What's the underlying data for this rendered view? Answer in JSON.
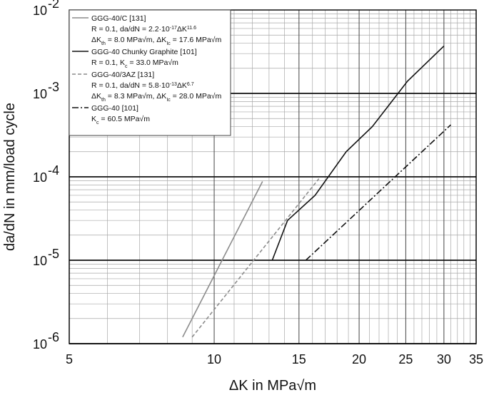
{
  "chart_data": {
    "type": "line",
    "title": "",
    "xlabel": "ΔK in MPa√m",
    "ylabel": "da/dN in mm/load cycle",
    "x_scale": "log",
    "y_scale": "log",
    "xlim": [
      5,
      35
    ],
    "ylim": [
      1e-06,
      0.01
    ],
    "grid": true,
    "x_ticks": [
      5,
      10,
      15,
      20,
      25,
      30,
      35
    ],
    "x_tick_labels": [
      "5",
      "10",
      "15",
      "20",
      "25",
      "30",
      "35"
    ],
    "y_ticks": [
      1e-06,
      1e-05,
      0.0001,
      0.001,
      0.01
    ],
    "y_tick_labels": [
      {
        "base": "10",
        "exp": "-6"
      },
      {
        "base": "10",
        "exp": "-5"
      },
      {
        "base": "10",
        "exp": "-4"
      },
      {
        "base": "10",
        "exp": "-3"
      },
      {
        "base": "10",
        "exp": "-2"
      }
    ],
    "legend_position": "top-left",
    "series": [
      {
        "name": "GGG-40/C [131]",
        "color": "#8c8c8c",
        "style": "solid",
        "x": [
          8.6,
          12.6
        ],
        "y": [
          1.2e-06,
          8.8e-05
        ],
        "legend_lines": [
          [
            {
              "t": "GGG-40/C [131]"
            }
          ],
          [
            {
              "t": "R = 0.1, da/dN = 2.2·10"
            },
            {
              "t": "-17",
              "sup": true
            },
            {
              "t": "ΔK"
            },
            {
              "t": "11.6",
              "sup": true
            }
          ],
          [
            {
              "t": "ΔK"
            },
            {
              "t": "th",
              "sub": true
            },
            {
              "t": " = 8.0 MPa√m, ΔK"
            },
            {
              "t": "Ic",
              "sub": true
            },
            {
              "t": " = 17.6 MPa√m"
            }
          ]
        ]
      },
      {
        "name": "GGG-40 Chunky Graphite [101]",
        "color": "#111111",
        "style": "solid",
        "x": [
          13.2,
          14.2,
          16.2,
          18.8,
          21.3,
          25.2,
          30.0
        ],
        "y": [
          1e-05,
          3e-05,
          6e-05,
          0.0002,
          0.0004,
          0.0014,
          0.0037
        ],
        "legend_lines": [
          [
            {
              "t": "GGG-40 Chunky Graphite [101]"
            }
          ],
          [
            {
              "t": "R = 0.1, K"
            },
            {
              "t": "c",
              "sub": true
            },
            {
              "t": " = 33.0 MPa√m"
            }
          ]
        ]
      },
      {
        "name": "GGG-40/3AZ [131]",
        "color": "#8c8c8c",
        "style": "dashed",
        "x": [
          9.0,
          16.5
        ],
        "y": [
          1.2e-06,
          9.5e-05
        ],
        "legend_lines": [
          [
            {
              "t": "GGG-40/3AZ [131]"
            }
          ],
          [
            {
              "t": "R = 0.1, da/dN = 5.8·10"
            },
            {
              "t": "-13",
              "sup": true
            },
            {
              "t": "ΔK"
            },
            {
              "t": "6.7",
              "sup": true
            }
          ],
          [
            {
              "t": "ΔK"
            },
            {
              "t": "th",
              "sub": true
            },
            {
              "t": " = 8.3 MPa√m, ΔK"
            },
            {
              "t": "Ic",
              "sub": true
            },
            {
              "t": " = 28.0 MPa√m"
            }
          ]
        ]
      },
      {
        "name": "GGG-40 [101]",
        "color": "#111111",
        "style": "dashdot",
        "x": [
          15.5,
          31.0
        ],
        "y": [
          1e-05,
          0.00042
        ],
        "legend_lines": [
          [
            {
              "t": "GGG-40 [101]"
            }
          ],
          [
            {
              "t": "K"
            },
            {
              "t": "c",
              "sub": true
            },
            {
              "t": " = 60.5 MPa√m"
            }
          ]
        ]
      }
    ]
  }
}
